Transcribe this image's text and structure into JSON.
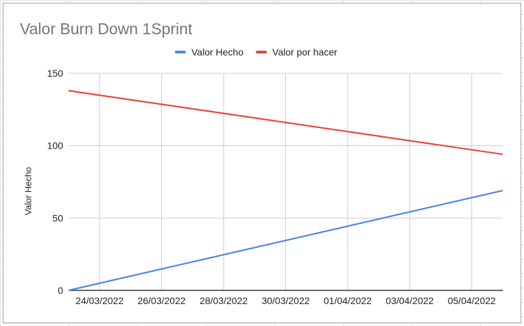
{
  "chart_data": {
    "type": "line",
    "title": "Valor Burn Down 1Sprint",
    "xlabel": "",
    "ylabel": "Valor Hecho",
    "x": [
      "23/03/2022",
      "06/04/2022"
    ],
    "x_range": [
      "23/03/2022",
      "06/04/2022"
    ],
    "x_ticks": [
      "24/03/2022",
      "26/03/2022",
      "28/03/2022",
      "30/03/2022",
      "01/04/2022",
      "03/04/2022",
      "05/04/2022"
    ],
    "ylim": [
      0,
      150
    ],
    "y_ticks": [
      0,
      50,
      100,
      150
    ],
    "grid": true,
    "legend_position": "top",
    "series": [
      {
        "name": "Valor Hecho",
        "color": "#4a86e8",
        "values": [
          0,
          69
        ]
      },
      {
        "name": "Valor por hacer",
        "color": "#e8453c",
        "values": [
          138,
          94
        ]
      }
    ]
  }
}
